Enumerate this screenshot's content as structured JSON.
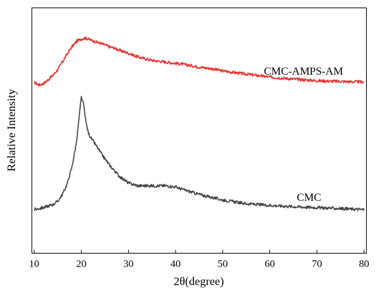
{
  "chart_data": {
    "type": "line",
    "title": "",
    "xlabel": "2θ(degree)",
    "ylabel": "Relative Intensity",
    "xlim": [
      9.5,
      80.5
    ],
    "x_ticks": [
      10,
      20,
      30,
      40,
      50,
      60,
      70,
      80
    ],
    "ylim": [
      0,
      1
    ],
    "y_ticks_shown": false,
    "grid": false,
    "legend": "none",
    "series": [
      {
        "name": "CMC-AMPS-AM",
        "color": "#e8312f",
        "x": [
          10,
          11,
          12,
          13,
          14,
          15,
          16,
          17,
          18,
          19,
          20,
          21,
          22,
          23,
          24,
          25,
          26,
          27,
          28,
          30,
          32,
          35,
          38,
          40,
          42,
          45,
          48,
          50,
          55,
          60,
          65,
          70,
          75,
          80
        ],
        "y": [
          0.696,
          0.686,
          0.692,
          0.708,
          0.726,
          0.749,
          0.78,
          0.813,
          0.841,
          0.864,
          0.874,
          0.877,
          0.869,
          0.862,
          0.856,
          0.849,
          0.841,
          0.836,
          0.828,
          0.815,
          0.8,
          0.786,
          0.779,
          0.774,
          0.769,
          0.759,
          0.751,
          0.743,
          0.73,
          0.718,
          0.71,
          0.703,
          0.7,
          0.698
        ]
      },
      {
        "name": "CMC",
        "color": "#444444",
        "x": [
          10,
          12,
          14,
          15,
          16,
          17,
          18,
          19,
          19.5,
          20,
          20.5,
          21,
          21.5,
          22,
          23,
          24,
          25,
          26,
          28,
          30,
          32,
          35,
          38,
          40,
          42,
          45,
          50,
          55,
          60,
          65,
          70,
          75,
          80
        ],
        "y": [
          0.178,
          0.186,
          0.199,
          0.212,
          0.24,
          0.283,
          0.351,
          0.456,
          0.548,
          0.637,
          0.604,
          0.532,
          0.49,
          0.471,
          0.443,
          0.412,
          0.385,
          0.359,
          0.315,
          0.286,
          0.275,
          0.275,
          0.275,
          0.27,
          0.257,
          0.24,
          0.217,
          0.202,
          0.195,
          0.19,
          0.186,
          0.182,
          0.178
        ]
      }
    ]
  }
}
